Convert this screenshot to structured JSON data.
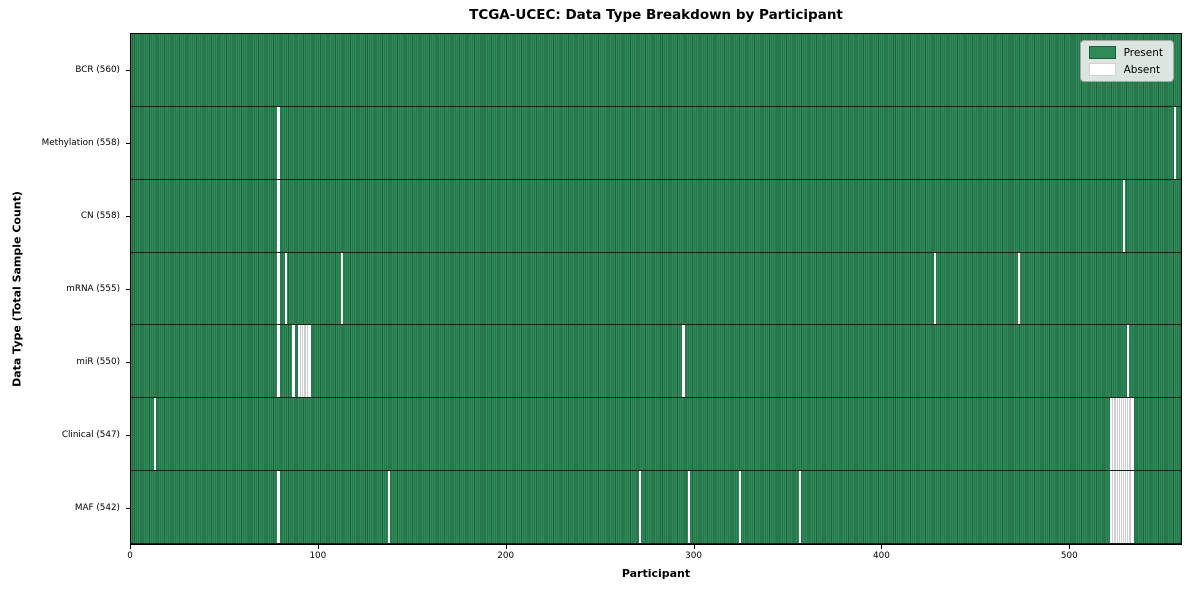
{
  "colors": {
    "present": "#2e8b57",
    "present_edge": "#206443",
    "absent": "#ffffff",
    "row_divider": "#0a140e",
    "legend_bg": "#ececec",
    "legend_border": "#a6a6a6"
  },
  "chart_data": {
    "type": "heatmap",
    "title": "TCGA-UCEC: Data Type Breakdown by Participant",
    "xlabel": "Participant",
    "ylabel": "Data Type (Total Sample Count)",
    "x_ticks": [
      0,
      100,
      200,
      300,
      400,
      500
    ],
    "x_range": [
      0,
      560
    ],
    "n_participants": 560,
    "grid": false,
    "legend_position": "upper-right",
    "legend": [
      {
        "label": "Present",
        "color": "#2e8b57"
      },
      {
        "label": "Absent",
        "color": "#ffffff"
      }
    ],
    "rows": [
      {
        "name": "BCR",
        "label": "BCR (560)",
        "total": 560,
        "absent": []
      },
      {
        "name": "Methylation",
        "label": "Methylation (558)",
        "total": 558,
        "absent": [
          78,
          556
        ]
      },
      {
        "name": "CN",
        "label": "CN (558)",
        "total": 558,
        "absent": [
          78,
          529
        ]
      },
      {
        "name": "mRNA",
        "label": "mRNA (555)",
        "total": 555,
        "absent": [
          78,
          82,
          112,
          428,
          473
        ]
      },
      {
        "name": "miR",
        "label": "miR (550)",
        "total": 550,
        "absent": [
          78,
          86,
          89,
          90,
          91,
          92,
          93,
          94,
          294,
          531
        ]
      },
      {
        "name": "Clinical",
        "label": "Clinical (547)",
        "total": 547,
        "absent": [
          12,
          522,
          523,
          524,
          525,
          526,
          527,
          528,
          529,
          530,
          531,
          532,
          533
        ]
      },
      {
        "name": "MAF",
        "label": "MAF (542)",
        "total": 542,
        "absent": [
          78,
          137,
          271,
          297,
          324,
          356,
          522,
          523,
          524,
          525,
          526,
          527,
          528,
          529,
          530,
          531,
          532,
          533
        ]
      }
    ]
  }
}
